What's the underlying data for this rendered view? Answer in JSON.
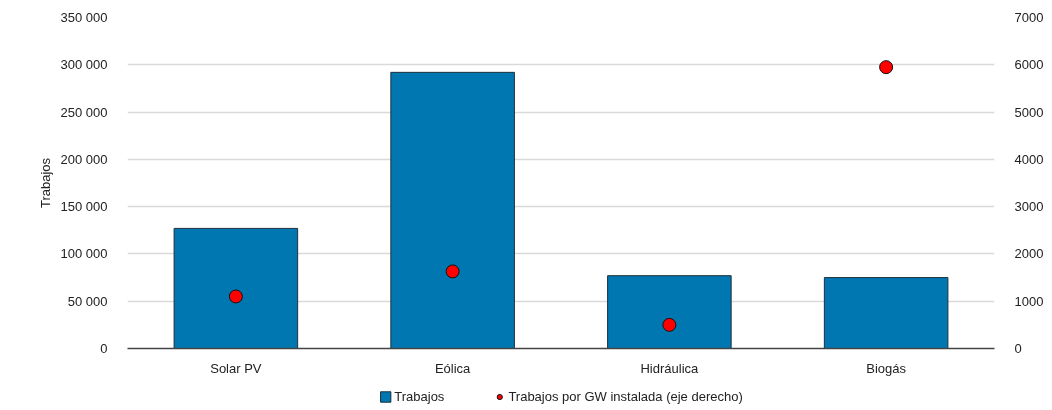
{
  "chart_data": {
    "type": "bar",
    "categories": [
      "Solar PV",
      "Eólica",
      "Hidráulica",
      "Biogás"
    ],
    "series": [
      {
        "name": "Trabajos",
        "color": "#0077b0",
        "values": [
          127000,
          292000,
          77000,
          75000
        ]
      },
      {
        "name": "Trabajos por GW instalada (eje derecho)",
        "type": "scatter",
        "axis": "y2",
        "color": "#ff0000",
        "values": [
          1100,
          1630,
          500,
          5950
        ]
      }
    ],
    "ylabel": "Trabajos",
    "ylim": [
      0,
      350000
    ],
    "yticks": [
      0,
      {
        "value": 50000,
        "label": "50 000"
      },
      {
        "value": 100000,
        "label": "100 000"
      },
      {
        "value": 150000,
        "label": "150 000"
      },
      {
        "value": 200000,
        "label": "200 000"
      },
      {
        "value": 250000,
        "label": "250 000"
      },
      {
        "value": 300000,
        "label": "300 000"
      },
      {
        "value": 350000,
        "label": "350 000"
      }
    ],
    "y2lim": [
      0,
      7000
    ],
    "y2ticks": [
      0,
      1000,
      2000,
      3000,
      4000,
      5000,
      6000,
      7000
    ],
    "grid": "y",
    "legend": "bottom",
    "marker": "circle"
  }
}
